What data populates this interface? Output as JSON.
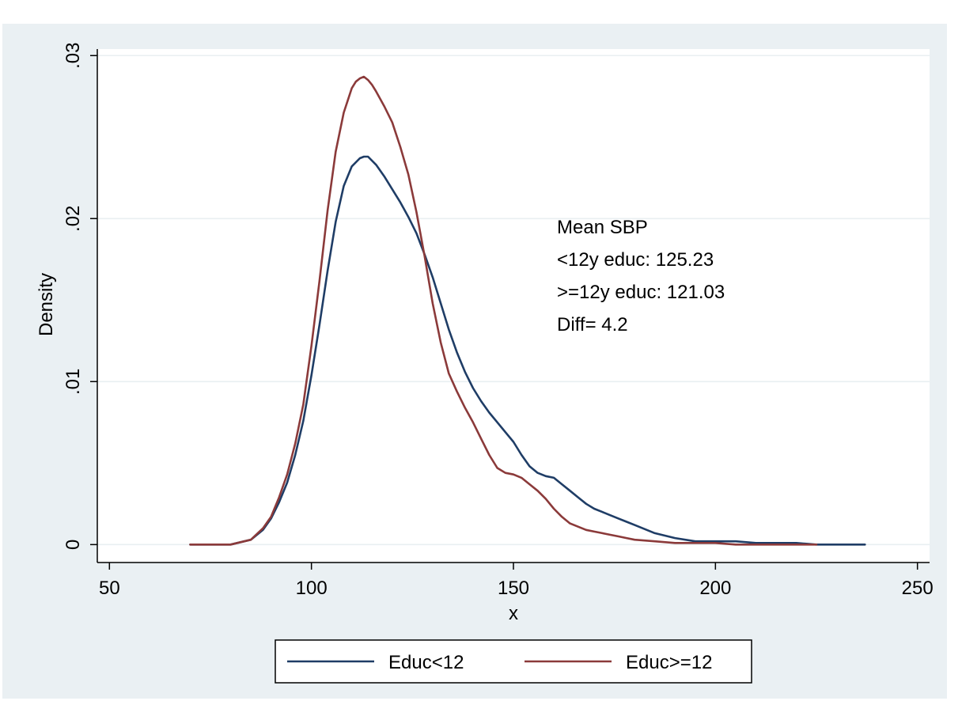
{
  "chart_data": {
    "type": "line",
    "title": "",
    "xlabel": "x",
    "ylabel": "Density",
    "xlim": [
      47,
      253
    ],
    "ylim": [
      -0.0011,
      0.0304
    ],
    "xticks": [
      50,
      100,
      150,
      200,
      250
    ],
    "xtick_labels": [
      "50",
      "100",
      "150",
      "200",
      "250"
    ],
    "yticks": [
      0,
      0.01,
      0.02,
      0.03
    ],
    "ytick_labels": [
      "0",
      ".01",
      ".02",
      ".03"
    ],
    "grid": "horizontal",
    "legend_position": "bottom",
    "annotation": [
      "Mean SBP",
      "<12y educ: 125.23",
      ">=12y educ: 121.03",
      "Diff= 4.2"
    ],
    "series": [
      {
        "name": "Educ<12",
        "color": "#1f3d66",
        "x": [
          70,
          75,
          80,
          85,
          88,
          90,
          92,
          94,
          96,
          98,
          100,
          102,
          104,
          106,
          108,
          110,
          112,
          113,
          114,
          116,
          118,
          120,
          122,
          124,
          126,
          128,
          130,
          132,
          134,
          136,
          138,
          140,
          142,
          144,
          146,
          148,
          150,
          152,
          154,
          156,
          158,
          160,
          162,
          164,
          166,
          168,
          170,
          172,
          174,
          176,
          178,
          180,
          185,
          190,
          195,
          200,
          205,
          210,
          215,
          220,
          225,
          230,
          237
        ],
        "y": [
          0,
          0,
          0,
          0.0003,
          0.0009,
          0.0016,
          0.0026,
          0.0038,
          0.0055,
          0.0076,
          0.0104,
          0.0135,
          0.0168,
          0.0198,
          0.022,
          0.0232,
          0.0237,
          0.0238,
          0.0238,
          0.0233,
          0.0226,
          0.0218,
          0.021,
          0.0201,
          0.0191,
          0.0178,
          0.0164,
          0.0148,
          0.0132,
          0.0118,
          0.0106,
          0.0096,
          0.0088,
          0.0081,
          0.0075,
          0.0069,
          0.0063,
          0.0055,
          0.0048,
          0.0044,
          0.0042,
          0.0041,
          0.0037,
          0.0033,
          0.0029,
          0.0025,
          0.0022,
          0.002,
          0.0018,
          0.0016,
          0.0014,
          0.0012,
          0.0007,
          0.0004,
          0.0002,
          0.0002,
          0.0002,
          0.0001,
          0.0001,
          0.0001,
          0,
          0,
          0
        ]
      },
      {
        "name": "Educ>=12",
        "color": "#8b3a3a",
        "x": [
          70,
          75,
          80,
          85,
          88,
          90,
          92,
          94,
          96,
          98,
          100,
          102,
          104,
          106,
          108,
          110,
          111,
          112,
          113,
          114,
          115,
          116,
          118,
          120,
          122,
          124,
          126,
          128,
          130,
          132,
          134,
          136,
          138,
          140,
          142,
          144,
          146,
          148,
          150,
          152,
          154,
          156,
          158,
          160,
          162,
          164,
          166,
          168,
          170,
          172,
          174,
          176,
          178,
          180,
          185,
          190,
          195,
          200,
          205,
          210,
          215,
          220,
          225
        ],
        "y": [
          0,
          0,
          0,
          0.0003,
          0.001,
          0.0017,
          0.0029,
          0.0043,
          0.0062,
          0.0086,
          0.0122,
          0.0162,
          0.0205,
          0.0241,
          0.0265,
          0.028,
          0.0284,
          0.0286,
          0.0287,
          0.0285,
          0.0282,
          0.0278,
          0.0269,
          0.0259,
          0.0244,
          0.0227,
          0.0204,
          0.0177,
          0.0148,
          0.0124,
          0.0105,
          0.0094,
          0.0084,
          0.0075,
          0.0065,
          0.0055,
          0.0047,
          0.0044,
          0.0043,
          0.0041,
          0.0037,
          0.0033,
          0.0028,
          0.0022,
          0.0017,
          0.0013,
          0.0011,
          0.0009,
          0.0008,
          0.0007,
          0.0006,
          0.0005,
          0.0004,
          0.0003,
          0.0002,
          0.0001,
          0.0001,
          0.0001,
          0,
          0,
          0,
          0,
          0
        ]
      }
    ]
  }
}
